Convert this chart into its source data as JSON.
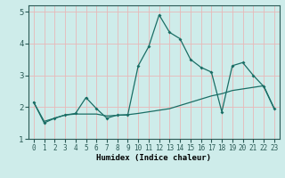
{
  "title": "",
  "xlabel": "Humidex (Indice chaleur)",
  "ylabel": "",
  "bg_color": "#ceecea",
  "grid_color": "#e8b8b8",
  "line_color": "#1a6e65",
  "xlim": [
    -0.5,
    23.5
  ],
  "ylim": [
    1.0,
    5.2
  ],
  "yticks": [
    1,
    2,
    3,
    4,
    5
  ],
  "xticks": [
    0,
    1,
    2,
    3,
    4,
    5,
    6,
    7,
    8,
    9,
    10,
    11,
    12,
    13,
    14,
    15,
    16,
    17,
    18,
    19,
    20,
    21,
    22,
    23
  ],
  "series1_x": [
    0,
    1,
    2,
    3,
    4,
    5,
    6,
    7,
    8,
    9,
    10,
    11,
    12,
    13,
    14,
    15,
    16,
    17,
    18,
    19,
    20,
    21,
    22,
    23
  ],
  "series1_y": [
    2.15,
    1.5,
    1.65,
    1.75,
    1.8,
    2.3,
    1.95,
    1.65,
    1.75,
    1.75,
    3.3,
    3.9,
    4.9,
    4.35,
    4.15,
    3.5,
    3.25,
    3.1,
    1.85,
    3.3,
    3.4,
    3.0,
    2.65,
    1.95
  ],
  "series2_x": [
    0,
    1,
    2,
    3,
    4,
    5,
    6,
    7,
    8,
    9,
    10,
    11,
    12,
    13,
    14,
    15,
    16,
    17,
    18,
    19,
    20,
    21,
    22,
    23
  ],
  "series2_y": [
    2.15,
    1.55,
    1.65,
    1.75,
    1.78,
    1.78,
    1.78,
    1.72,
    1.74,
    1.76,
    1.8,
    1.85,
    1.9,
    1.95,
    2.05,
    2.15,
    2.25,
    2.35,
    2.42,
    2.52,
    2.57,
    2.62,
    2.67,
    1.97
  ]
}
